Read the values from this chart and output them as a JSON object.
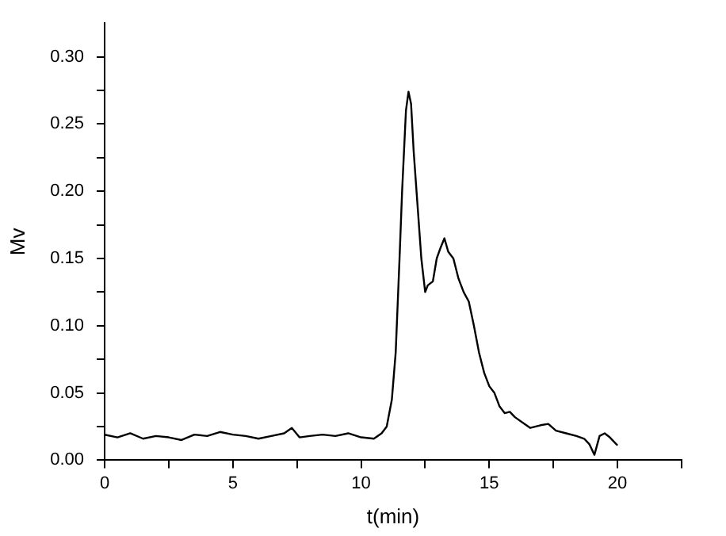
{
  "chart_data": {
    "type": "line",
    "xlabel": "t(min)",
    "ylabel": "Mv",
    "x": [
      0,
      0.5,
      1,
      1.5,
      2,
      2.5,
      3,
      3.5,
      4,
      4.5,
      5,
      5.5,
      6,
      6.5,
      7,
      7.3,
      7.6,
      8,
      8.5,
      9,
      9.5,
      10,
      10.5,
      10.8,
      11,
      11.2,
      11.35,
      11.5,
      11.6,
      11.75,
      11.85,
      11.95,
      12.05,
      12.2,
      12.35,
      12.5,
      12.6,
      12.8,
      12.95,
      13.1,
      13.25,
      13.4,
      13.6,
      13.8,
      14,
      14.2,
      14.4,
      14.6,
      14.8,
      15,
      15.2,
      15.4,
      15.6,
      15.8,
      16,
      16.3,
      16.6,
      17,
      17.3,
      17.6,
      18,
      18.4,
      18.7,
      18.9,
      19.1,
      19.3,
      19.5,
      19.7,
      20
    ],
    "series": [
      {
        "color": "#000000",
        "values": [
          0.019,
          0.017,
          0.02,
          0.016,
          0.018,
          0.017,
          0.015,
          0.019,
          0.018,
          0.021,
          0.019,
          0.018,
          0.016,
          0.018,
          0.02,
          0.024,
          0.017,
          0.018,
          0.019,
          0.018,
          0.02,
          0.017,
          0.016,
          0.02,
          0.025,
          0.045,
          0.08,
          0.15,
          0.2,
          0.26,
          0.274,
          0.265,
          0.23,
          0.19,
          0.15,
          0.125,
          0.13,
          0.133,
          0.15,
          0.158,
          0.165,
          0.155,
          0.15,
          0.135,
          0.125,
          0.118,
          0.1,
          0.08,
          0.065,
          0.055,
          0.05,
          0.04,
          0.035,
          0.036,
          0.032,
          0.028,
          0.024,
          0.026,
          0.027,
          0.022,
          0.02,
          0.018,
          0.016,
          0.012,
          0.004,
          0.018,
          0.02,
          0.017,
          0.011
        ]
      }
    ],
    "xlim": [
      0,
      22.5
    ],
    "xticks": [
      0,
      {
        "value": 2.5,
        "label": null
      },
      5,
      {
        "value": 7.5,
        "label": null
      },
      10,
      {
        "value": 12.5,
        "label": null
      },
      15,
      {
        "value": 17.5,
        "label": null
      },
      20,
      {
        "value": 22.5,
        "label": null
      }
    ],
    "ylim": [
      0,
      0.325
    ],
    "yticks": [
      {
        "value": 0,
        "label": "0.00"
      },
      {
        "value": 0.025,
        "label": null
      },
      {
        "value": 0.05,
        "label": "0.05"
      },
      {
        "value": 0.075,
        "label": null
      },
      {
        "value": 0.1,
        "label": "0.10"
      },
      {
        "value": 0.125,
        "label": null
      },
      {
        "value": 0.15,
        "label": "0.15"
      },
      {
        "value": 0.175,
        "label": null
      },
      {
        "value": 0.2,
        "label": "0.20"
      },
      {
        "value": 0.225,
        "label": null
      },
      {
        "value": 0.25,
        "label": "0.25"
      },
      {
        "value": 0.275,
        "label": null
      },
      {
        "value": 0.3,
        "label": "0.30"
      }
    ],
    "grid": false,
    "legend": false,
    "marker": "none",
    "line_style": "solid"
  }
}
